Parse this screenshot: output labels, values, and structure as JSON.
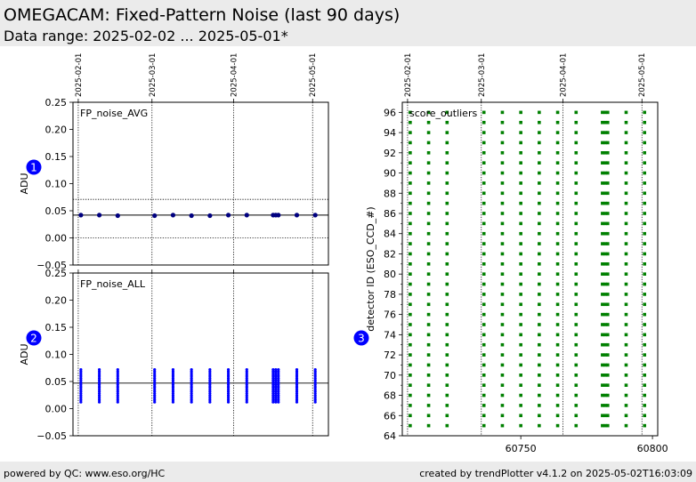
{
  "header": {
    "title": "OMEGACAM: Fixed-Pattern Noise (last 90 days)",
    "subtitle": "Data range: 2025-02-02 ... 2025-05-01*"
  },
  "footer": {
    "left": "powered by QC: www.eso.org/HC",
    "right": "created by trendPlotter v4.1.2 on 2025-05-02T16:03:09"
  },
  "colors": {
    "avg_points": "#000080",
    "all_points": "#0000ff",
    "outliers": "#008000",
    "badge": "#0000ff"
  },
  "chart_data": [
    {
      "type": "scatter",
      "panel_number": "1",
      "label": "FP_noise_AVG",
      "ylabel": "ADU",
      "ylim": [
        -0.05,
        0.25
      ],
      "yticks": [
        "−0.05",
        "0.00",
        "0.05",
        "0.10",
        "0.15",
        "0.20",
        "0.25"
      ],
      "ytick_values": [
        -0.05,
        0.0,
        0.05,
        0.1,
        0.15,
        0.2,
        0.25
      ],
      "xlim": [
        60705,
        60802
      ],
      "date_ticks": [
        {
          "label": "2025-02-01",
          "mjd": 60707
        },
        {
          "label": "2025-03-01",
          "mjd": 60735
        },
        {
          "label": "2025-04-01",
          "mjd": 60766
        },
        {
          "label": "2025-05-01",
          "mjd": 60796
        }
      ],
      "reference_line": 0.042,
      "dotted_lines": [
        0.0,
        0.071
      ],
      "x": [
        60708,
        60715,
        60722,
        60736,
        60743,
        60750,
        60757,
        60764,
        60771,
        60781,
        60782,
        60783,
        60790,
        60797
      ],
      "y": [
        0.042,
        0.042,
        0.041,
        0.041,
        0.042,
        0.041,
        0.041,
        0.042,
        0.042,
        0.042,
        0.042,
        0.042,
        0.042,
        0.042
      ]
    },
    {
      "type": "scatter",
      "panel_number": "2",
      "label": "FP_noise_ALL",
      "ylabel": "ADU",
      "ylim": [
        -0.05,
        0.25
      ],
      "yticks": [
        "−0.05",
        "0.00",
        "0.05",
        "0.10",
        "0.15",
        "0.20",
        "0.25"
      ],
      "ytick_values": [
        -0.05,
        0.0,
        0.05,
        0.1,
        0.15,
        0.2,
        0.25
      ],
      "xlim": [
        60705,
        60802
      ],
      "date_ticks": [
        {
          "label": "2025-02-01",
          "mjd": 60707
        },
        {
          "label": "2025-03-01",
          "mjd": 60735
        },
        {
          "label": "2025-04-01",
          "mjd": 60766
        },
        {
          "label": "2025-05-01",
          "mjd": 60796
        }
      ],
      "reference_line": 0.047,
      "x": [
        60708,
        60715,
        60722,
        60736,
        60743,
        60750,
        60757,
        60764,
        60771,
        60781,
        60782,
        60783,
        60790,
        60797
      ],
      "y_min": 0.012,
      "y_max": 0.072
    },
    {
      "type": "scatter",
      "panel_number": "3",
      "label": "score_outliers",
      "ylabel": "detector ID (ESO_CCD_#)",
      "ylim": [
        64,
        97
      ],
      "yticks": [
        "64",
        "66",
        "68",
        "70",
        "72",
        "74",
        "76",
        "78",
        "80",
        "82",
        "84",
        "86",
        "88",
        "90",
        "92",
        "94",
        "96"
      ],
      "ytick_values": [
        64,
        66,
        68,
        70,
        72,
        74,
        76,
        78,
        80,
        82,
        84,
        86,
        88,
        90,
        92,
        94,
        96
      ],
      "xlim": [
        60705,
        60802
      ],
      "xticks": [
        "60750",
        "60800"
      ],
      "xtick_values": [
        60750,
        60800
      ],
      "date_ticks": [
        {
          "label": "2025-02-01",
          "mjd": 60707
        },
        {
          "label": "2025-03-01",
          "mjd": 60735
        },
        {
          "label": "2025-04-01",
          "mjd": 60766
        },
        {
          "label": "2025-05-01",
          "mjd": 60796
        }
      ],
      "x": [
        60708,
        60715,
        60722,
        60736,
        60743,
        60750,
        60757,
        60764,
        60771,
        60781,
        60782,
        60783,
        60790,
        60797
      ],
      "detectors": [
        65,
        96
      ]
    }
  ]
}
